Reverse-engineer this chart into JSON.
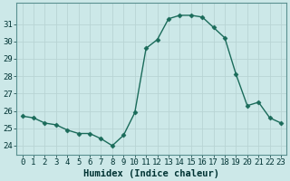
{
  "x": [
    0,
    1,
    2,
    3,
    4,
    5,
    6,
    7,
    8,
    9,
    10,
    11,
    12,
    13,
    14,
    15,
    16,
    17,
    18,
    19,
    20,
    21,
    22,
    23
  ],
  "y": [
    25.7,
    25.6,
    25.3,
    25.2,
    24.9,
    24.7,
    24.7,
    24.4,
    24.0,
    24.6,
    25.9,
    29.6,
    30.1,
    31.3,
    31.5,
    31.5,
    31.4,
    30.8,
    30.2,
    28.1,
    26.3,
    26.5,
    25.6,
    25.3
  ],
  "line_color": "#1a6b5a",
  "marker": "D",
  "marker_size": 2.5,
  "bg_color": "#cce8e8",
  "grid_major_color": "#b8d4d4",
  "grid_minor_color": "#ccdddd",
  "xlabel": "Humidex (Indice chaleur)",
  "ylim": [
    23.5,
    32.2
  ],
  "xlim": [
    -0.5,
    23.5
  ],
  "yticks": [
    24,
    25,
    26,
    27,
    28,
    29,
    30,
    31
  ],
  "xtick_labels": [
    "0",
    "1",
    "2",
    "3",
    "4",
    "5",
    "6",
    "7",
    "8",
    "9",
    "10",
    "11",
    "12",
    "13",
    "14",
    "15",
    "16",
    "17",
    "18",
    "19",
    "20",
    "21",
    "22",
    "23"
  ],
  "tick_fontsize": 6.5,
  "xlabel_fontsize": 7.5,
  "label_color": "#003333"
}
